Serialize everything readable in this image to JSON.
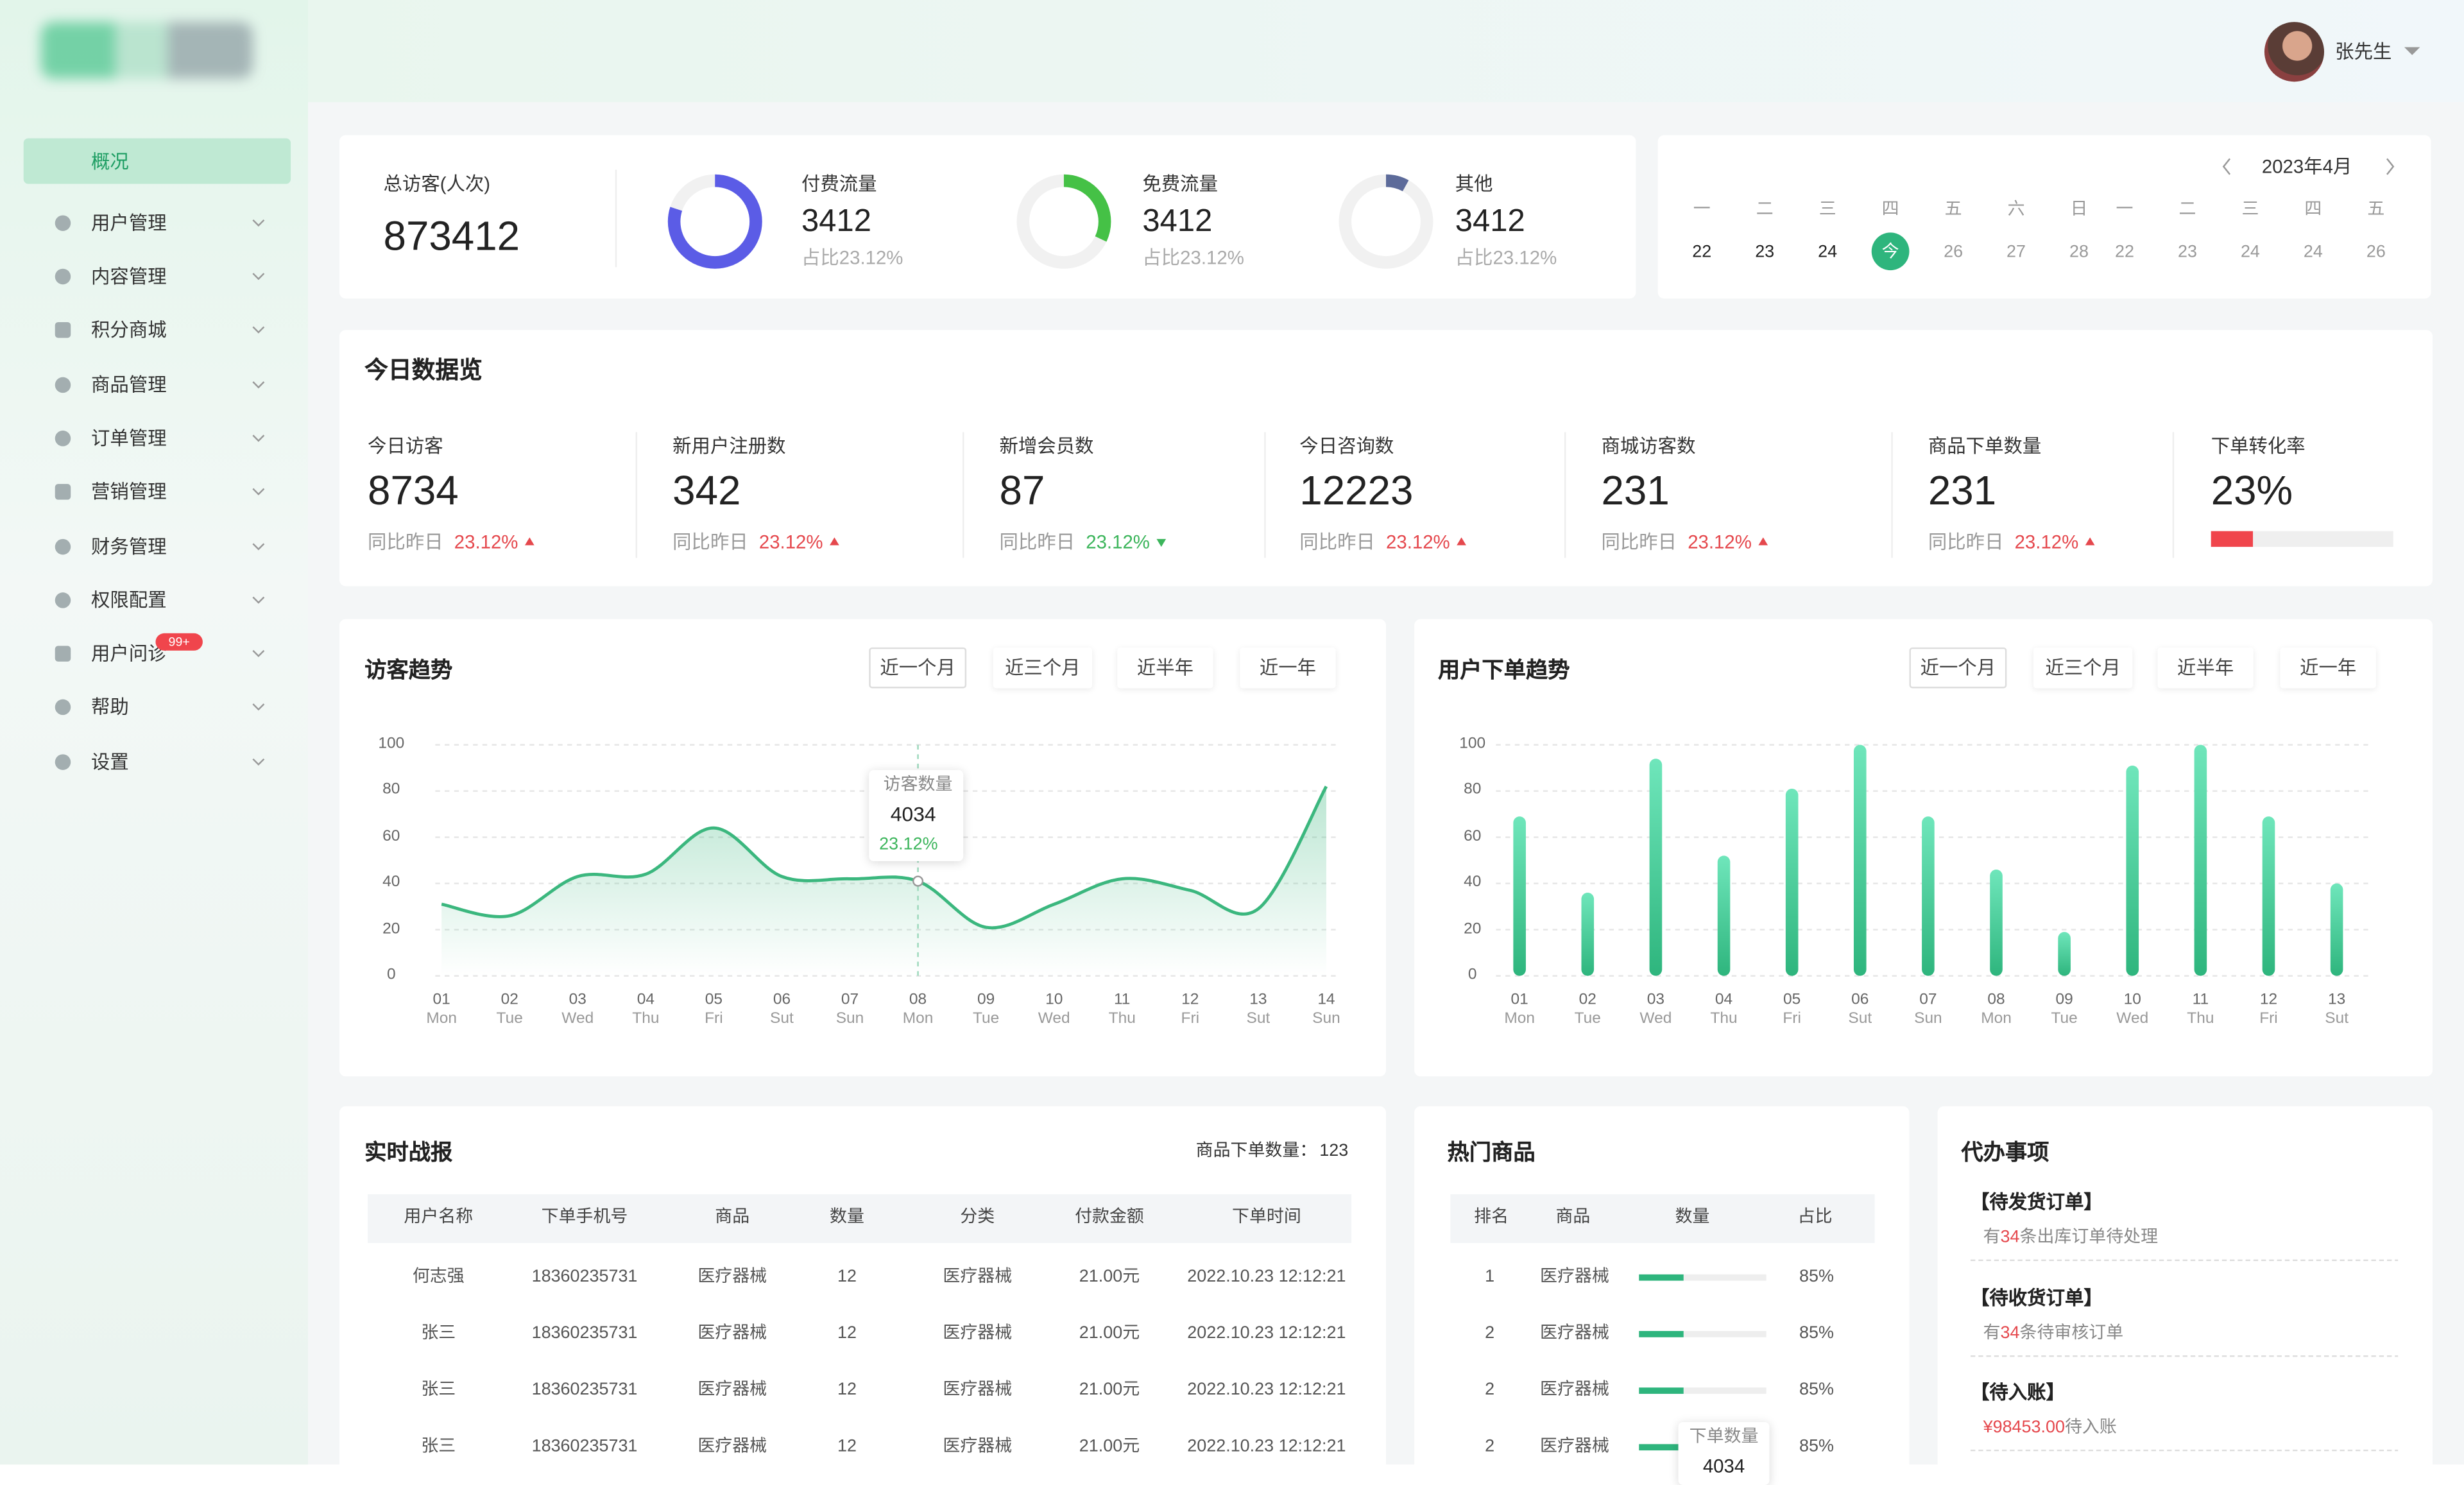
{
  "header": {
    "user": "张先生"
  },
  "sidebar": {
    "items": [
      "概况",
      "用户管理",
      "内容管理",
      "积分商城",
      "商品管理",
      "订单管理",
      "营销管理",
      "财务管理",
      "权限配置",
      "用户问诊",
      "帮助",
      "设置"
    ],
    "badge": "99+"
  },
  "summary": {
    "total": {
      "label": "总访客(人次)",
      "value": 873412
    },
    "sources": [
      {
        "label": "付费流量",
        "value": 3412,
        "share": "占比23.12%",
        "ring": 80,
        "color": "#5b5ce6"
      },
      {
        "label": "免费流量",
        "value": 3412,
        "share": "占比23.12%",
        "ring": 32,
        "color": "#45c146"
      },
      {
        "label": "其他",
        "value": 3412,
        "share": "占比23.12%",
        "ring": 8,
        "color": "#5d6b9a"
      }
    ]
  },
  "calendar": {
    "month": "2023年4月",
    "weekdays": [
      "一",
      "二",
      "三",
      "四",
      "五",
      "六",
      "日",
      "一",
      "二",
      "三",
      "四",
      "五"
    ],
    "days": [
      "22",
      "23",
      "24",
      "今",
      "26",
      "27",
      "28",
      "22",
      "23",
      "24",
      "24",
      "26"
    ]
  },
  "overview": {
    "title": "今日数据览",
    "items": [
      {
        "label": "今日访客",
        "value": 8734,
        "compare": "同比昨日",
        "change": "23.12%",
        "trend": "up"
      },
      {
        "label": "新用户注册数",
        "value": 342,
        "compare": "同比昨日",
        "change": "23.12%",
        "trend": "up"
      },
      {
        "label": "新增会员数",
        "value": 87,
        "compare": "同比昨日",
        "change": "23.12%",
        "trend": "down"
      },
      {
        "label": "今日咨询数",
        "value": 12223,
        "compare": "同比昨日",
        "change": "23.12%",
        "trend": "up"
      },
      {
        "label": "商城访客数",
        "value": 231,
        "compare": "同比昨日",
        "change": "23.12%",
        "trend": "up"
      },
      {
        "label": "商品下单数量",
        "value": 231,
        "compare": "同比昨日",
        "change": "23.12%",
        "trend": "up"
      },
      {
        "label": "下单转化率",
        "value": 23,
        "value_label": "23%",
        "color": "#f0454c"
      }
    ]
  },
  "chart_data": [
    {
      "type": "line",
      "title": "访客趋势",
      "tabs": [
        "近一个月",
        "近三个月",
        "近半年",
        "近一年"
      ],
      "categories": [
        "01",
        "02",
        "03",
        "04",
        "05",
        "06",
        "07",
        "08",
        "09",
        "10",
        "11",
        "12",
        "13",
        "14"
      ],
      "weekdays": [
        "Mon",
        "Tue",
        "Wed",
        "Thu",
        "Fri",
        "Sut",
        "Sun",
        "Mon",
        "Tue",
        "Wed",
        "Thu",
        "Fri",
        "Sut",
        "Sun"
      ],
      "series": [
        {
          "name": "访客数量",
          "color": "#3bb77e",
          "values": [
            31,
            26,
            43,
            44,
            64,
            43,
            42,
            41,
            21,
            31,
            42,
            37,
            29,
            82
          ]
        }
      ],
      "ylim": [
        0,
        100
      ],
      "yticks": [
        0,
        20,
        40,
        60,
        80,
        100
      ],
      "grid": true,
      "tooltip": {
        "value": 4034,
        "change": "23.12%",
        "trend": "down"
      }
    },
    {
      "type": "bar",
      "title": "用户下单趋势",
      "tabs": [
        "近一个月",
        "近三个月",
        "近半年",
        "近一年"
      ],
      "categories": [
        "01",
        "02",
        "03",
        "04",
        "05",
        "06",
        "07",
        "08",
        "09",
        "10",
        "11",
        "12",
        "13"
      ],
      "weekdays": [
        "Mon",
        "Tue",
        "Wed",
        "Thu",
        "Fri",
        "Sut",
        "Sun",
        "Mon",
        "Tue",
        "Wed",
        "Thu",
        "Fri",
        "Sut"
      ],
      "values": [
        69,
        36,
        94,
        52,
        81,
        100,
        69,
        46,
        19,
        91,
        100,
        69,
        40
      ],
      "color": "#3cc98e",
      "ylim": [
        0,
        100
      ],
      "yticks": [
        0,
        20,
        40,
        60,
        80,
        100
      ],
      "grid": true
    }
  ],
  "realtime": {
    "title": "实时战报",
    "meta_label": "商品下单数量：",
    "meta_value": 123,
    "columns": [
      "用户名称",
      "下单手机号",
      "商品",
      "数量",
      "分类",
      "付款金额",
      "下单时间"
    ],
    "rows": [
      [
        "何志强",
        "18360235731",
        "医疗器械",
        12,
        "医疗器械",
        "21.00元",
        "2022.10.23 12:12:21"
      ],
      [
        "张三",
        "18360235731",
        "医疗器械",
        12,
        "医疗器械",
        "21.00元",
        "2022.10.23 12:12:21"
      ],
      [
        "张三",
        "18360235731",
        "医疗器械",
        12,
        "医疗器械",
        "21.00元",
        "2022.10.23 12:12:21"
      ],
      [
        "张三",
        "18360235731",
        "医疗器械",
        12,
        "医疗器械",
        "21.00元",
        "2022.10.23 12:12:21"
      ]
    ]
  },
  "hot": {
    "title": "热门商品",
    "columns": [
      "排名",
      "商品",
      "数量",
      "占比"
    ],
    "rows": [
      {
        "rank": 1,
        "name": "医疗器械",
        "amount": 35,
        "share": "85%"
      },
      {
        "rank": 2,
        "name": "医疗器械",
        "amount": 35,
        "share": "85%"
      },
      {
        "rank": 2,
        "name": "医疗器械",
        "amount": 35,
        "share": "85%"
      },
      {
        "rank": 2,
        "name": "医疗器械",
        "amount": 35,
        "share": "85%"
      }
    ],
    "tooltip": {
      "label": "下单数量",
      "value": 4034
    }
  },
  "todo": {
    "title": "代办事项",
    "items": [
      {
        "title": "【待发货订单】",
        "prefix": "有",
        "count": 34,
        "suffix": "条出库订单待处理"
      },
      {
        "title": "【待收货订单】",
        "prefix": "有",
        "count": 34,
        "suffix": "条待审核订单"
      },
      {
        "title": "【待入账】",
        "amount": "¥98453.00",
        "suffix": "待入账"
      }
    ]
  }
}
